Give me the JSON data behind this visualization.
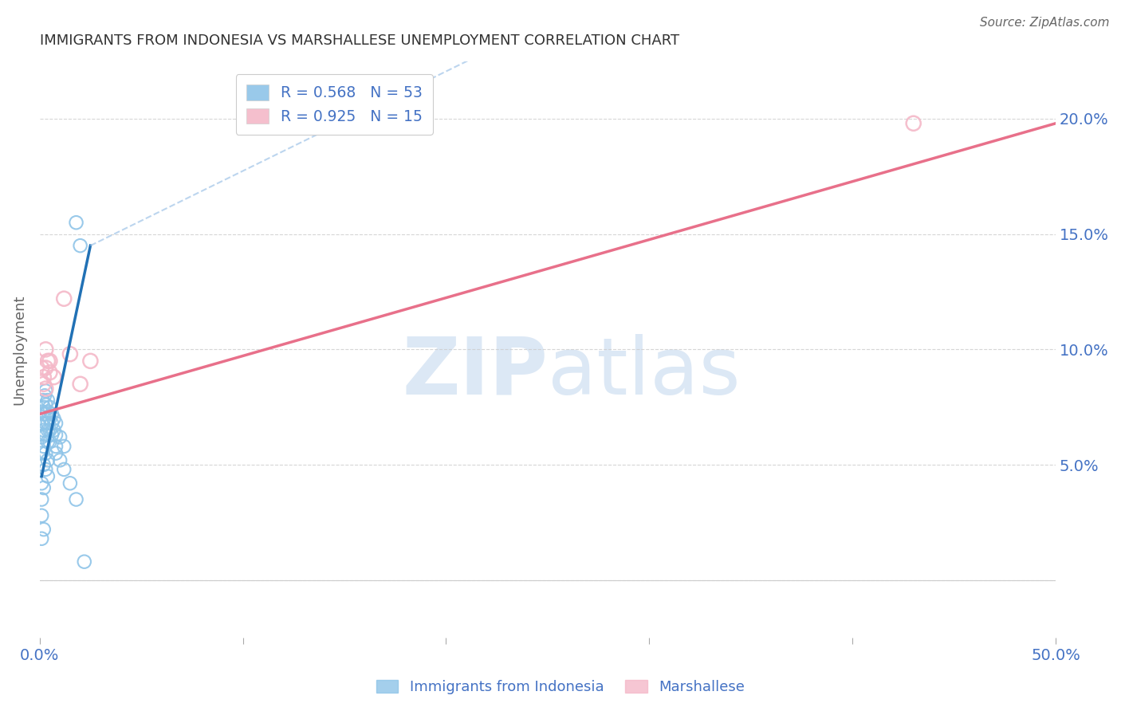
{
  "title": "IMMIGRANTS FROM INDONESIA VS MARSHALLESE UNEMPLOYMENT CORRELATION CHART",
  "source": "Source: ZipAtlas.com",
  "ylabel": "Unemployment",
  "yticks": [
    0.0,
    0.05,
    0.1,
    0.15,
    0.2
  ],
  "ytick_labels": [
    "",
    "5.0%",
    "10.0%",
    "15.0%",
    "20.0%"
  ],
  "xticks": [
    0.0,
    0.1,
    0.2,
    0.3,
    0.4,
    0.5
  ],
  "xlim": [
    0.0,
    0.5
  ],
  "ylim": [
    -0.025,
    0.225
  ],
  "legend_items": [
    {
      "label": "R = 0.568   N = 53",
      "color": "#8ec4e8"
    },
    {
      "label": "R = 0.925   N = 15",
      "color": "#f4b8c8"
    }
  ],
  "indonesia_scatter": [
    [
      0.0005,
      0.073
    ],
    [
      0.001,
      0.068
    ],
    [
      0.001,
      0.062
    ],
    [
      0.0015,
      0.078
    ],
    [
      0.002,
      0.075
    ],
    [
      0.002,
      0.072
    ],
    [
      0.002,
      0.065
    ],
    [
      0.0025,
      0.08
    ],
    [
      0.003,
      0.082
    ],
    [
      0.003,
      0.076
    ],
    [
      0.003,
      0.072
    ],
    [
      0.003,
      0.068
    ],
    [
      0.003,
      0.063
    ],
    [
      0.004,
      0.078
    ],
    [
      0.004,
      0.073
    ],
    [
      0.004,
      0.068
    ],
    [
      0.004,
      0.065
    ],
    [
      0.004,
      0.06
    ],
    [
      0.005,
      0.075
    ],
    [
      0.005,
      0.07
    ],
    [
      0.005,
      0.065
    ],
    [
      0.005,
      0.06
    ],
    [
      0.006,
      0.072
    ],
    [
      0.006,
      0.068
    ],
    [
      0.006,
      0.063
    ],
    [
      0.007,
      0.07
    ],
    [
      0.007,
      0.065
    ],
    [
      0.008,
      0.068
    ],
    [
      0.008,
      0.063
    ],
    [
      0.008,
      0.058
    ],
    [
      0.001,
      0.055
    ],
    [
      0.002,
      0.058
    ],
    [
      0.003,
      0.055
    ],
    [
      0.004,
      0.052
    ],
    [
      0.002,
      0.05
    ],
    [
      0.003,
      0.048
    ],
    [
      0.004,
      0.045
    ],
    [
      0.001,
      0.042
    ],
    [
      0.002,
      0.04
    ],
    [
      0.001,
      0.035
    ],
    [
      0.001,
      0.028
    ],
    [
      0.002,
      0.022
    ],
    [
      0.001,
      0.018
    ],
    [
      0.01,
      0.052
    ],
    [
      0.012,
      0.048
    ],
    [
      0.015,
      0.042
    ],
    [
      0.018,
      0.155
    ],
    [
      0.02,
      0.145
    ],
    [
      0.018,
      0.035
    ],
    [
      0.022,
      0.008
    ],
    [
      0.01,
      0.062
    ],
    [
      0.012,
      0.058
    ],
    [
      0.008,
      0.055
    ]
  ],
  "marshallese_scatter": [
    [
      0.001,
      0.092
    ],
    [
      0.002,
      0.085
    ],
    [
      0.003,
      0.1
    ],
    [
      0.003,
      0.092
    ],
    [
      0.004,
      0.095
    ],
    [
      0.005,
      0.09
    ],
    [
      0.002,
      0.088
    ],
    [
      0.003,
      0.083
    ],
    [
      0.005,
      0.095
    ],
    [
      0.007,
      0.088
    ],
    [
      0.012,
      0.122
    ],
    [
      0.015,
      0.098
    ],
    [
      0.02,
      0.085
    ],
    [
      0.025,
      0.095
    ],
    [
      0.43,
      0.198
    ]
  ],
  "indonesia_line_solid": [
    [
      0.001,
      0.045
    ],
    [
      0.025,
      0.145
    ]
  ],
  "indonesia_line_dashed": [
    [
      0.025,
      0.145
    ],
    [
      0.5,
      0.35
    ]
  ],
  "marshallese_line": [
    [
      0.0,
      0.072
    ],
    [
      0.5,
      0.198
    ]
  ],
  "scatter_color_indonesia": "#8ec4e8",
  "scatter_color_marshallese": "#f4b8c8",
  "line_color_indonesia": "#2171b5",
  "line_color_indonesia_dashed": "#a0c4e8",
  "line_color_marshallese": "#e8708a",
  "background_color": "#ffffff",
  "grid_color": "#cccccc",
  "title_color": "#333333",
  "axis_label_color": "#4472c4",
  "watermark_zip": "ZIP",
  "watermark_atlas": "atlas",
  "watermark_color": "#dce8f5"
}
